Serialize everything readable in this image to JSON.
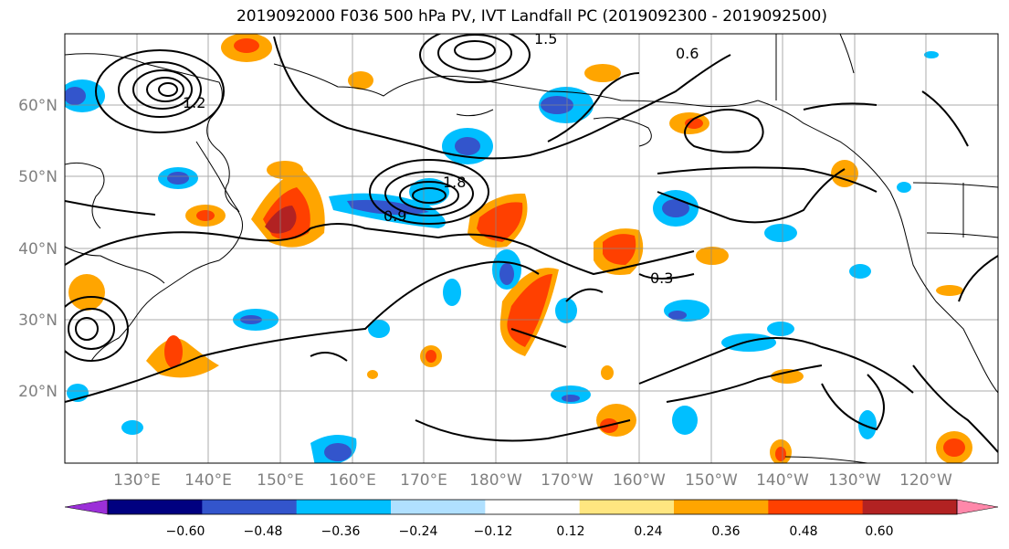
{
  "title": "2019092000 F036 500 hPa PV, IVT Landfall PC (2019092300 - 2019092500)",
  "map": {
    "lon_labels": [
      "130°E",
      "140°E",
      "150°E",
      "160°E",
      "170°E",
      "180°W",
      "170°W",
      "160°W",
      "150°W",
      "140°W",
      "130°W",
      "120°W"
    ],
    "lat_labels": [
      "60°N",
      "50°N",
      "40°N",
      "30°N",
      "20°N"
    ],
    "contour_labels": [
      "1.2",
      "1.5",
      "1.8",
      "0.9",
      "0.6",
      "0.3"
    ],
    "colors": {
      "land_border": "#000000",
      "grid": "#888888",
      "contour": "#000000"
    }
  },
  "colorbar": {
    "colors": [
      "#9b30d8",
      "#000080",
      "#3355cc",
      "#00bfff",
      "#b0e0ff",
      "#ffffff",
      "#ffe680",
      "#ffa500",
      "#ff4000",
      "#b22222",
      "#ff88aa"
    ],
    "tick_labels": [
      "−0.60",
      "−0.48",
      "−0.36",
      "−0.24",
      "−0.12",
      "0.12",
      "0.24",
      "0.36",
      "0.48",
      "0.60"
    ]
  }
}
